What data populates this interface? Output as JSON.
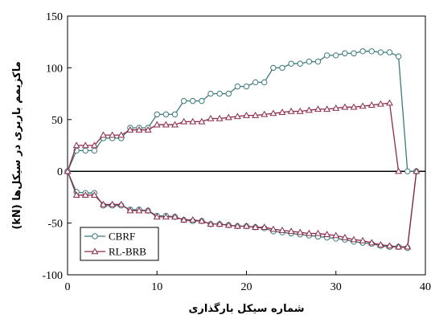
{
  "chart_data": {
    "type": "line",
    "title": "",
    "xlabel": "شماره سیکل بارگذاری",
    "ylabel": "ماکزیمم باربری در سیکل‌ها (kN)",
    "xlim": [
      0,
      40
    ],
    "ylim": [
      -100,
      150
    ],
    "xticks": [
      "0",
      "10",
      "20",
      "30",
      "40"
    ],
    "yticks": [
      "-100",
      "-50",
      "0",
      "50",
      "100",
      "150"
    ],
    "grid": false,
    "legend_position": "bottom-left",
    "series": [
      {
        "name": "CBRF",
        "color": "#3d7a7a",
        "marker": "circle",
        "positive": [
          [
            0,
            0
          ],
          [
            1,
            20
          ],
          [
            2,
            20
          ],
          [
            3,
            20
          ],
          [
            4,
            32
          ],
          [
            5,
            32
          ],
          [
            6,
            32
          ],
          [
            7,
            42
          ],
          [
            8,
            42
          ],
          [
            9,
            42
          ],
          [
            10,
            55
          ],
          [
            11,
            55
          ],
          [
            12,
            55
          ],
          [
            13,
            68
          ],
          [
            14,
            68
          ],
          [
            15,
            68
          ],
          [
            16,
            75
          ],
          [
            17,
            75
          ],
          [
            18,
            75
          ],
          [
            19,
            82
          ],
          [
            20,
            82
          ],
          [
            21,
            86
          ],
          [
            22,
            86
          ],
          [
            23,
            100
          ],
          [
            24,
            100
          ],
          [
            25,
            104
          ],
          [
            26,
            104
          ],
          [
            27,
            106
          ],
          [
            28,
            106
          ],
          [
            29,
            112
          ],
          [
            30,
            112
          ],
          [
            31,
            114
          ],
          [
            32,
            114
          ],
          [
            33,
            116
          ],
          [
            34,
            116
          ],
          [
            35,
            115
          ],
          [
            36,
            115
          ],
          [
            37,
            111
          ],
          [
            38,
            0
          ],
          [
            39,
            0
          ]
        ],
        "negative": [
          [
            0,
            0
          ],
          [
            1,
            -20
          ],
          [
            2,
            -21
          ],
          [
            3,
            -21
          ],
          [
            4,
            -33
          ],
          [
            5,
            -33
          ],
          [
            6,
            -33
          ],
          [
            7,
            -37
          ],
          [
            8,
            -37
          ],
          [
            9,
            -38
          ],
          [
            10,
            -43
          ],
          [
            11,
            -43
          ],
          [
            12,
            -44
          ],
          [
            13,
            -47
          ],
          [
            14,
            -48
          ],
          [
            15,
            -48
          ],
          [
            16,
            -51
          ],
          [
            17,
            -51
          ],
          [
            18,
            -52
          ],
          [
            19,
            -53
          ],
          [
            20,
            -53
          ],
          [
            21,
            -54
          ],
          [
            22,
            -55
          ],
          [
            23,
            -58
          ],
          [
            24,
            -59
          ],
          [
            25,
            -60
          ],
          [
            26,
            -61
          ],
          [
            27,
            -62
          ],
          [
            28,
            -63
          ],
          [
            29,
            -64
          ],
          [
            30,
            -65
          ],
          [
            31,
            -66
          ],
          [
            32,
            -68
          ],
          [
            33,
            -69
          ],
          [
            34,
            -70
          ],
          [
            35,
            -72
          ],
          [
            36,
            -73
          ],
          [
            37,
            -73
          ],
          [
            38,
            -74
          ],
          [
            39,
            0
          ]
        ]
      },
      {
        "name": "RL-BRB",
        "color": "#8b2a4a",
        "marker": "triangle",
        "positive": [
          [
            0,
            0
          ],
          [
            1,
            25
          ],
          [
            2,
            25
          ],
          [
            3,
            25
          ],
          [
            4,
            35
          ],
          [
            5,
            35
          ],
          [
            6,
            35
          ],
          [
            7,
            40
          ],
          [
            8,
            40
          ],
          [
            9,
            40
          ],
          [
            10,
            45
          ],
          [
            11,
            45
          ],
          [
            12,
            45
          ],
          [
            13,
            48
          ],
          [
            14,
            48
          ],
          [
            15,
            48
          ],
          [
            16,
            51
          ],
          [
            17,
            51
          ],
          [
            18,
            52
          ],
          [
            19,
            53
          ],
          [
            20,
            54
          ],
          [
            21,
            54
          ],
          [
            22,
            55
          ],
          [
            23,
            56
          ],
          [
            24,
            57
          ],
          [
            25,
            58
          ],
          [
            26,
            58
          ],
          [
            27,
            59
          ],
          [
            28,
            60
          ],
          [
            29,
            60
          ],
          [
            30,
            61
          ],
          [
            31,
            62
          ],
          [
            32,
            62
          ],
          [
            33,
            63
          ],
          [
            34,
            64
          ],
          [
            35,
            65
          ],
          [
            36,
            66
          ],
          [
            37,
            0
          ]
        ],
        "negative": [
          [
            0,
            0
          ],
          [
            1,
            -23
          ],
          [
            2,
            -23
          ],
          [
            3,
            -23
          ],
          [
            4,
            -32
          ],
          [
            5,
            -32
          ],
          [
            6,
            -32
          ],
          [
            7,
            -38
          ],
          [
            8,
            -38
          ],
          [
            9,
            -38
          ],
          [
            10,
            -44
          ],
          [
            11,
            -44
          ],
          [
            12,
            -44
          ],
          [
            13,
            -47
          ],
          [
            14,
            -47
          ],
          [
            15,
            -48
          ],
          [
            16,
            -51
          ],
          [
            17,
            -51
          ],
          [
            18,
            -52
          ],
          [
            19,
            -53
          ],
          [
            20,
            -53
          ],
          [
            21,
            -54
          ],
          [
            22,
            -54
          ],
          [
            23,
            -56
          ],
          [
            24,
            -57
          ],
          [
            25,
            -58
          ],
          [
            26,
            -59
          ],
          [
            27,
            -60
          ],
          [
            28,
            -60
          ],
          [
            29,
            -61
          ],
          [
            30,
            -62
          ],
          [
            31,
            -64
          ],
          [
            32,
            -66
          ],
          [
            33,
            -67
          ],
          [
            34,
            -69
          ],
          [
            35,
            -71
          ],
          [
            36,
            -72
          ],
          [
            37,
            -73
          ],
          [
            38,
            -73
          ],
          [
            39,
            0
          ]
        ]
      }
    ]
  }
}
